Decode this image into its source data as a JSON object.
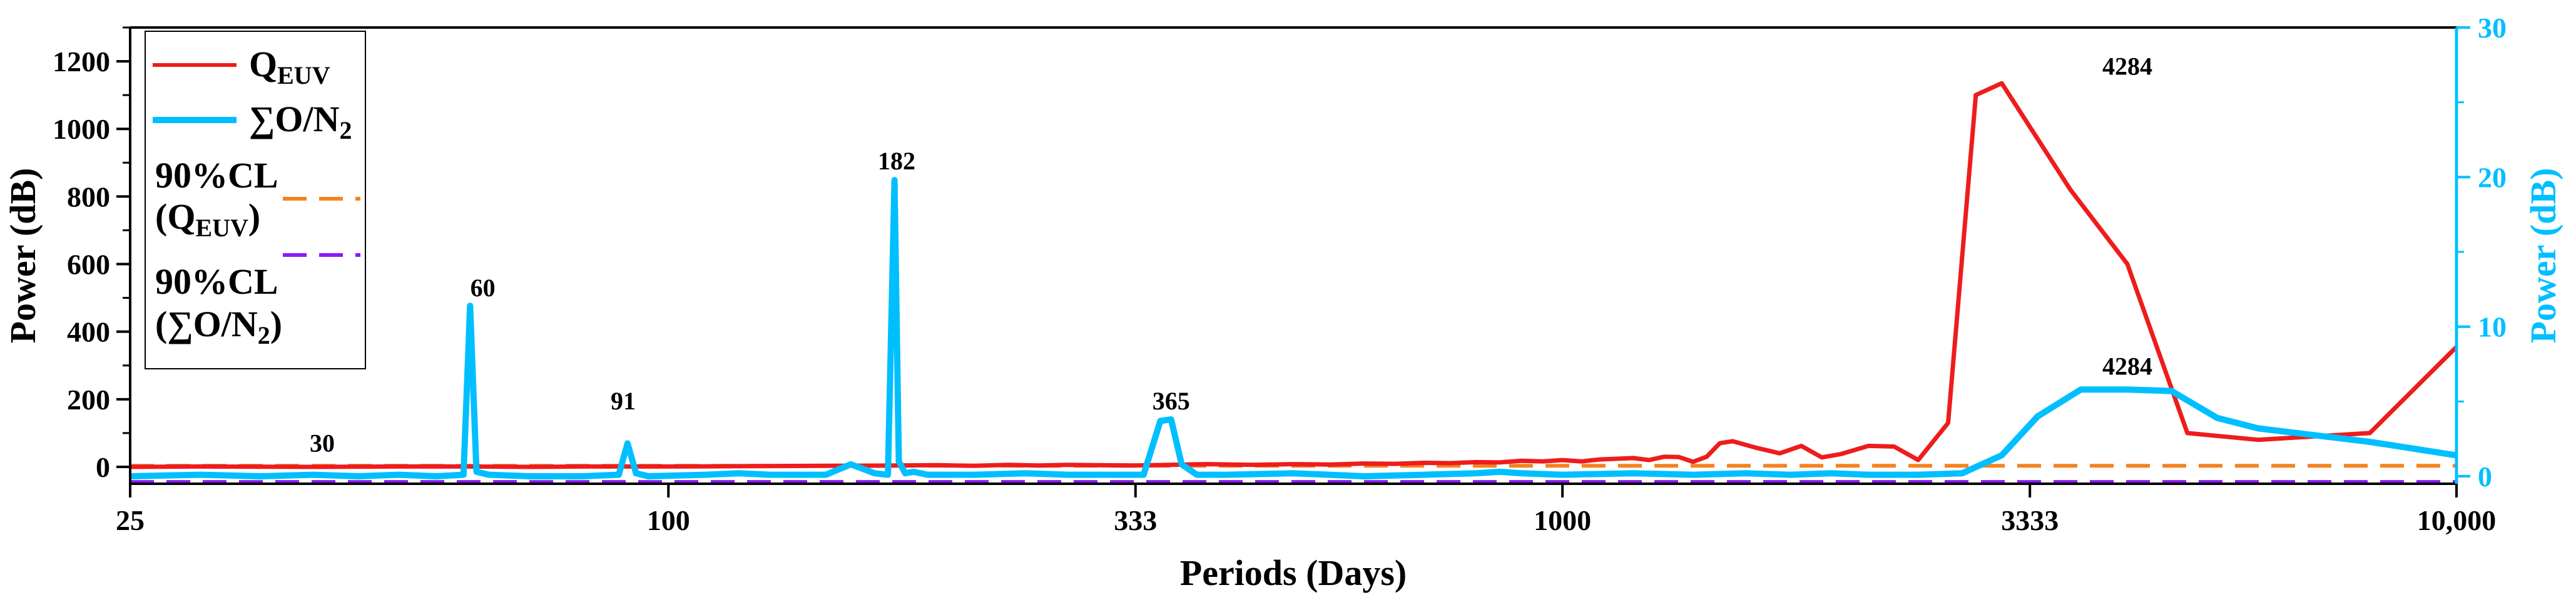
{
  "chart_data": {
    "type": "line",
    "xscale": "log",
    "xlabel": "Periods (Days)",
    "ylabel_left": "Power (dB)",
    "ylabel_right": "Power (dB)",
    "xlim": [
      25,
      10000
    ],
    "ylim_left": [
      -50,
      1300
    ],
    "ylim_right": [
      -0.5,
      30
    ],
    "x_ticks": [
      25,
      100,
      333,
      1000,
      3333,
      10000
    ],
    "x_tick_labels": [
      "25",
      "100",
      "333",
      "1000",
      "3333",
      "10,000"
    ],
    "y_left_ticks": [
      0,
      200,
      400,
      600,
      800,
      1000,
      1200
    ],
    "y_left_tick_labels": [
      "0",
      "200",
      "400",
      "600",
      "800",
      "1000",
      "1200"
    ],
    "y_right_ticks": [
      0,
      10,
      20,
      30
    ],
    "y_right_tick_labels": [
      "0",
      "10",
      "20",
      "30"
    ],
    "legend": {
      "q_main": "Q",
      "q_sub": "EUV",
      "on_main": "∑O/N",
      "on_sub": "2",
      "cl1_line1": "90%CL",
      "cl1_open": "(Q",
      "cl1_sub": "EUV",
      "cl1_close": ")",
      "cl2_line1": "90%CL",
      "cl2_open": "(∑O/N",
      "cl2_sub": "2",
      "cl2_close": ")"
    },
    "colors": {
      "q_euv": "#EE1C1C",
      "on2": "#00BFFF",
      "cl_q": "#F58220",
      "cl_on": "#8B1CF5"
    },
    "annotations": [
      {
        "text": "30",
        "x": 41,
        "y_axis": "left",
        "y": 45
      },
      {
        "text": "60",
        "x": 62,
        "y_axis": "left",
        "y": 505
      },
      {
        "text": "91",
        "x": 89,
        "y_axis": "left",
        "y": 170
      },
      {
        "text": "182",
        "x": 180,
        "y_axis": "left",
        "y": 880
      },
      {
        "text": "365",
        "x": 365,
        "y_axis": "left",
        "y": 170
      },
      {
        "text": "4284",
        "x": 4284,
        "y_axis": "left",
        "y": 1160
      },
      {
        "text": "4284",
        "x": 4284,
        "y_axis": "right",
        "y": 6.8
      }
    ],
    "series": [
      {
        "name": "Q_EUV",
        "axis": "left",
        "x": [
          25,
          30,
          40,
          50,
          60,
          70,
          80,
          100,
          120,
          150,
          180,
          200,
          220,
          240,
          260,
          280,
          300,
          333,
          365,
          400,
          450,
          500,
          550,
          600,
          650,
          700,
          750,
          800,
          850,
          900,
          950,
          1000,
          1050,
          1100,
          1150,
          1200,
          1250,
          1300,
          1350,
          1400,
          1450,
          1500,
          1550,
          1650,
          1750,
          1850,
          1950,
          2050,
          2200,
          2350,
          2500,
          2700,
          2900,
          3100,
          3700,
          4284,
          5000,
          6000,
          8000,
          10000
        ],
        "y": [
          0,
          1,
          0,
          1,
          1,
          0,
          1,
          1,
          2,
          3,
          4,
          5,
          3,
          6,
          4,
          6,
          5,
          4,
          6,
          8,
          6,
          8,
          7,
          10,
          9,
          12,
          11,
          14,
          13,
          18,
          16,
          20,
          16,
          22,
          24,
          26,
          20,
          30,
          29,
          15,
          30,
          70,
          76,
          56,
          40,
          62,
          28,
          38,
          62,
          60,
          20,
          130,
          1100,
          1135,
          820,
          600,
          100,
          80,
          100,
          355
        ]
      },
      {
        "name": "∑O/N2",
        "axis": "right",
        "x": [
          25,
          30,
          35,
          40,
          45,
          50,
          55,
          59,
          60,
          61,
          63,
          70,
          80,
          88,
          90,
          92,
          95,
          110,
          120,
          130,
          140,
          150,
          160,
          170,
          176,
          179,
          181,
          184,
          188,
          195,
          200,
          220,
          250,
          280,
          310,
          340,
          355,
          365,
          375,
          390,
          420,
          500,
          600,
          700,
          800,
          850,
          900,
          1000,
          1200,
          1400,
          1600,
          1800,
          2000,
          2200,
          2500,
          2800,
          3100,
          3400,
          3800,
          4284,
          4800,
          5400,
          6000,
          8000,
          10000
        ],
        "y": [
          0,
          0.1,
          0,
          0.1,
          0,
          0.1,
          0,
          0.1,
          11.4,
          0.3,
          0.1,
          0,
          0,
          0.1,
          2.2,
          0.2,
          0,
          0.1,
          0.2,
          0.1,
          0.1,
          0.1,
          0.8,
          0.2,
          0.1,
          19.8,
          1,
          0.2,
          0.3,
          0.1,
          0.1,
          0.1,
          0.2,
          0.1,
          0.1,
          0.1,
          3.7,
          3.8,
          0.8,
          0.1,
          0.1,
          0.2,
          0,
          0.1,
          0.2,
          0.3,
          0.2,
          0.1,
          0.2,
          0.1,
          0.2,
          0.1,
          0.2,
          0.1,
          0.1,
          0.2,
          1.4,
          4,
          5.8,
          5.8,
          5.7,
          3.9,
          3.2,
          2.3,
          1.4
        ]
      },
      {
        "name": "90%CL (Q_EUV)",
        "axis": "left",
        "style": "dashed",
        "x": [
          25,
          10000
        ],
        "y": [
          3,
          3
        ]
      },
      {
        "name": "90%CL (∑O/N2)",
        "axis": "right",
        "style": "dashed",
        "x": [
          25,
          10000
        ],
        "y": [
          -0.4,
          -0.4
        ]
      }
    ]
  }
}
